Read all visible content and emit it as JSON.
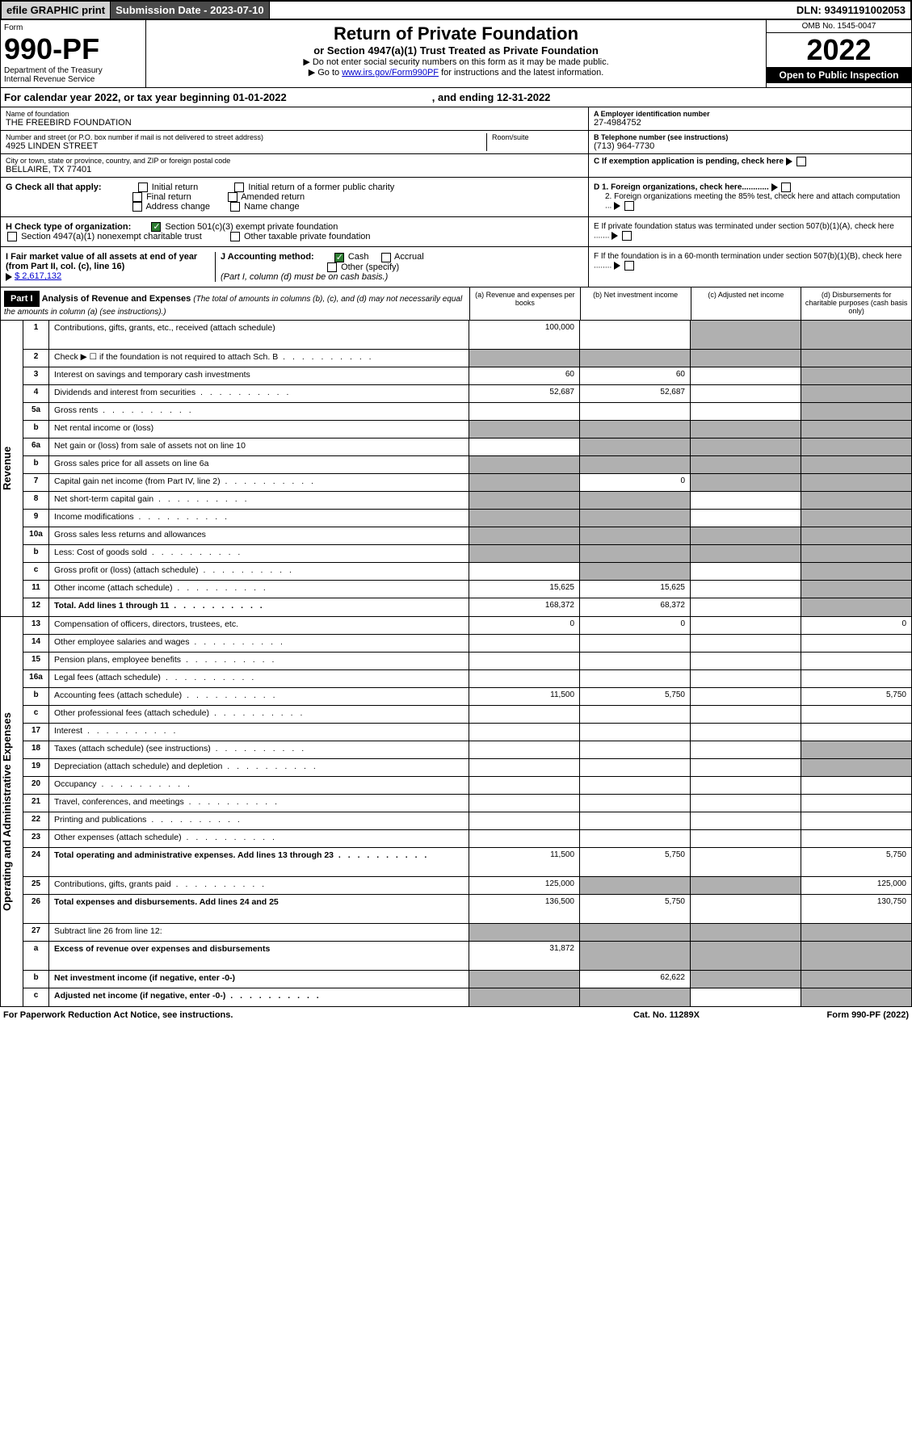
{
  "top": {
    "efile": "efile GRAPHIC print",
    "subdate_label": "Submission Date - 2023-07-10",
    "dln": "DLN: 93491191002053"
  },
  "header": {
    "form_word": "Form",
    "form_number": "990-PF",
    "dept": "Department of the Treasury",
    "irs": "Internal Revenue Service",
    "title": "Return of Private Foundation",
    "subtitle": "or Section 4947(a)(1) Trust Treated as Private Foundation",
    "note1": "▶ Do not enter social security numbers on this form as it may be made public.",
    "note2_pre": "▶ Go to ",
    "note2_link": "www.irs.gov/Form990PF",
    "note2_post": " for instructions and the latest information.",
    "omb": "OMB No. 1545-0047",
    "year": "2022",
    "open": "Open to Public Inspection"
  },
  "cal_year": {
    "pre": "For calendar year 2022, or tax year beginning ",
    "begin": "01-01-2022",
    "mid": ", and ending ",
    "end": "12-31-2022"
  },
  "info": {
    "name_label": "Name of foundation",
    "name": "THE FREEBIRD FOUNDATION",
    "addr_label": "Number and street (or P.O. box number if mail is not delivered to street address)",
    "addr": "4925 LINDEN STREET",
    "room_label": "Room/suite",
    "city_label": "City or town, state or province, country, and ZIP or foreign postal code",
    "city": "BELLAIRE, TX  77401",
    "ein_label": "A Employer identification number",
    "ein": "27-4984752",
    "phone_label": "B Telephone number (see instructions)",
    "phone": "(713) 964-7730",
    "c_label": "C If exemption application is pending, check here"
  },
  "checks": {
    "g_label": "G Check all that apply:",
    "g_opts": [
      "Initial return",
      "Initial return of a former public charity",
      "Final return",
      "Amended return",
      "Address change",
      "Name change"
    ],
    "h_label": "H Check type of organization:",
    "h_opts": [
      "Section 501(c)(3) exempt private foundation",
      "Section 4947(a)(1) nonexempt charitable trust",
      "Other taxable private foundation"
    ],
    "i_label": "I Fair market value of all assets at end of year (from Part II, col. (c), line 16)",
    "i_val": "$  2,617,132",
    "j_label": "J Accounting method:",
    "j_opts": [
      "Cash",
      "Accrual",
      "Other (specify)"
    ],
    "j_note": "(Part I, column (d) must be on cash basis.)",
    "d1": "D 1. Foreign organizations, check here............",
    "d2": "2. Foreign organizations meeting the 85% test, check here and attach computation ...",
    "e": "E  If private foundation status was terminated under section 507(b)(1)(A), check here .......",
    "f": "F  If the foundation is in a 60-month termination under section 507(b)(1)(B), check here ........"
  },
  "part1": {
    "label": "Part I",
    "title": "Analysis of Revenue and Expenses",
    "desc": "(The total of amounts in columns (b), (c), and (d) may not necessarily equal the amounts in column (a) (see instructions).)",
    "col_a": "(a)   Revenue and expenses per books",
    "col_b": "(b)   Net investment income",
    "col_c": "(c)   Adjusted net income",
    "col_d": "(d)   Disbursements for charitable purposes (cash basis only)"
  },
  "sections": {
    "revenue": "Revenue",
    "expenses": "Operating and Administrative Expenses"
  },
  "rows": [
    {
      "n": "1",
      "label": "Contributions, gifts, grants, etc., received (attach schedule)",
      "a": "100,000",
      "b": "",
      "c": "s",
      "d": "s",
      "h": true
    },
    {
      "n": "2",
      "label": "Check ▶ ☐ if the foundation is not required to attach Sch. B",
      "dots": true,
      "a": "s",
      "b": "s",
      "c": "s",
      "d": "s"
    },
    {
      "n": "3",
      "label": "Interest on savings and temporary cash investments",
      "a": "60",
      "b": "60",
      "c": "",
      "d": "s"
    },
    {
      "n": "4",
      "label": "Dividends and interest from securities",
      "dots": true,
      "a": "52,687",
      "b": "52,687",
      "c": "",
      "d": "s"
    },
    {
      "n": "5a",
      "label": "Gross rents",
      "dots": true,
      "a": "",
      "b": "",
      "c": "",
      "d": "s"
    },
    {
      "n": "b",
      "label": "Net rental income or (loss)",
      "a": "s",
      "b": "s",
      "c": "s",
      "d": "s"
    },
    {
      "n": "6a",
      "label": "Net gain or (loss) from sale of assets not on line 10",
      "a": "",
      "b": "s",
      "c": "s",
      "d": "s"
    },
    {
      "n": "b",
      "label": "Gross sales price for all assets on line 6a",
      "a": "s",
      "b": "s",
      "c": "s",
      "d": "s"
    },
    {
      "n": "7",
      "label": "Capital gain net income (from Part IV, line 2)",
      "dots": true,
      "a": "s",
      "b": "0",
      "c": "s",
      "d": "s"
    },
    {
      "n": "8",
      "label": "Net short-term capital gain",
      "dots": true,
      "a": "s",
      "b": "s",
      "c": "",
      "d": "s"
    },
    {
      "n": "9",
      "label": "Income modifications",
      "dots": true,
      "a": "s",
      "b": "s",
      "c": "",
      "d": "s"
    },
    {
      "n": "10a",
      "label": "Gross sales less returns and allowances",
      "a": "s",
      "b": "s",
      "c": "s",
      "d": "s"
    },
    {
      "n": "b",
      "label": "Less: Cost of goods sold",
      "dots": true,
      "a": "s",
      "b": "s",
      "c": "s",
      "d": "s"
    },
    {
      "n": "c",
      "label": "Gross profit or (loss) (attach schedule)",
      "dots": true,
      "a": "",
      "b": "s",
      "c": "",
      "d": "s"
    },
    {
      "n": "11",
      "label": "Other income (attach schedule)",
      "dots": true,
      "a": "15,625",
      "b": "15,625",
      "c": "",
      "d": "s"
    },
    {
      "n": "12",
      "label": "Total. Add lines 1 through 11",
      "bold": true,
      "dots": true,
      "a": "168,372",
      "b": "68,372",
      "c": "",
      "d": "s"
    }
  ],
  "exp_rows": [
    {
      "n": "13",
      "label": "Compensation of officers, directors, trustees, etc.",
      "a": "0",
      "b": "0",
      "c": "",
      "d": "0"
    },
    {
      "n": "14",
      "label": "Other employee salaries and wages",
      "dots": true,
      "a": "",
      "b": "",
      "c": "",
      "d": ""
    },
    {
      "n": "15",
      "label": "Pension plans, employee benefits",
      "dots": true,
      "a": "",
      "b": "",
      "c": "",
      "d": ""
    },
    {
      "n": "16a",
      "label": "Legal fees (attach schedule)",
      "dots": true,
      "a": "",
      "b": "",
      "c": "",
      "d": ""
    },
    {
      "n": "b",
      "label": "Accounting fees (attach schedule)",
      "dots": true,
      "a": "11,500",
      "b": "5,750",
      "c": "",
      "d": "5,750"
    },
    {
      "n": "c",
      "label": "Other professional fees (attach schedule)",
      "dots": true,
      "a": "",
      "b": "",
      "c": "",
      "d": ""
    },
    {
      "n": "17",
      "label": "Interest",
      "dots": true,
      "a": "",
      "b": "",
      "c": "",
      "d": ""
    },
    {
      "n": "18",
      "label": "Taxes (attach schedule) (see instructions)",
      "dots": true,
      "a": "",
      "b": "",
      "c": "",
      "d": "s"
    },
    {
      "n": "19",
      "label": "Depreciation (attach schedule) and depletion",
      "dots": true,
      "a": "",
      "b": "",
      "c": "",
      "d": "s"
    },
    {
      "n": "20",
      "label": "Occupancy",
      "dots": true,
      "a": "",
      "b": "",
      "c": "",
      "d": ""
    },
    {
      "n": "21",
      "label": "Travel, conferences, and meetings",
      "dots": true,
      "a": "",
      "b": "",
      "c": "",
      "d": ""
    },
    {
      "n": "22",
      "label": "Printing and publications",
      "dots": true,
      "a": "",
      "b": "",
      "c": "",
      "d": ""
    },
    {
      "n": "23",
      "label": "Other expenses (attach schedule)",
      "dots": true,
      "a": "",
      "b": "",
      "c": "",
      "d": ""
    },
    {
      "n": "24",
      "label": "Total operating and administrative expenses. Add lines 13 through 23",
      "bold": true,
      "dots": true,
      "a": "11,500",
      "b": "5,750",
      "c": "",
      "d": "5,750",
      "h": true
    },
    {
      "n": "25",
      "label": "Contributions, gifts, grants paid",
      "dots": true,
      "a": "125,000",
      "b": "s",
      "c": "s",
      "d": "125,000"
    },
    {
      "n": "26",
      "label": "Total expenses and disbursements. Add lines 24 and 25",
      "bold": true,
      "a": "136,500",
      "b": "5,750",
      "c": "",
      "d": "130,750",
      "h": true
    },
    {
      "n": "27",
      "label": "Subtract line 26 from line 12:",
      "a": "s",
      "b": "s",
      "c": "s",
      "d": "s"
    },
    {
      "n": "a",
      "label": "Excess of revenue over expenses and disbursements",
      "bold": true,
      "a": "31,872",
      "b": "s",
      "c": "s",
      "d": "s",
      "h": true
    },
    {
      "n": "b",
      "label": "Net investment income (if negative, enter -0-)",
      "bold": true,
      "a": "s",
      "b": "62,622",
      "c": "s",
      "d": "s"
    },
    {
      "n": "c",
      "label": "Adjusted net income (if negative, enter -0-)",
      "bold": true,
      "dots": true,
      "a": "s",
      "b": "s",
      "c": "",
      "d": "s"
    }
  ],
  "footer": {
    "left": "For Paperwork Reduction Act Notice, see instructions.",
    "mid": "Cat. No. 11289X",
    "right": "Form 990-PF (2022)"
  }
}
